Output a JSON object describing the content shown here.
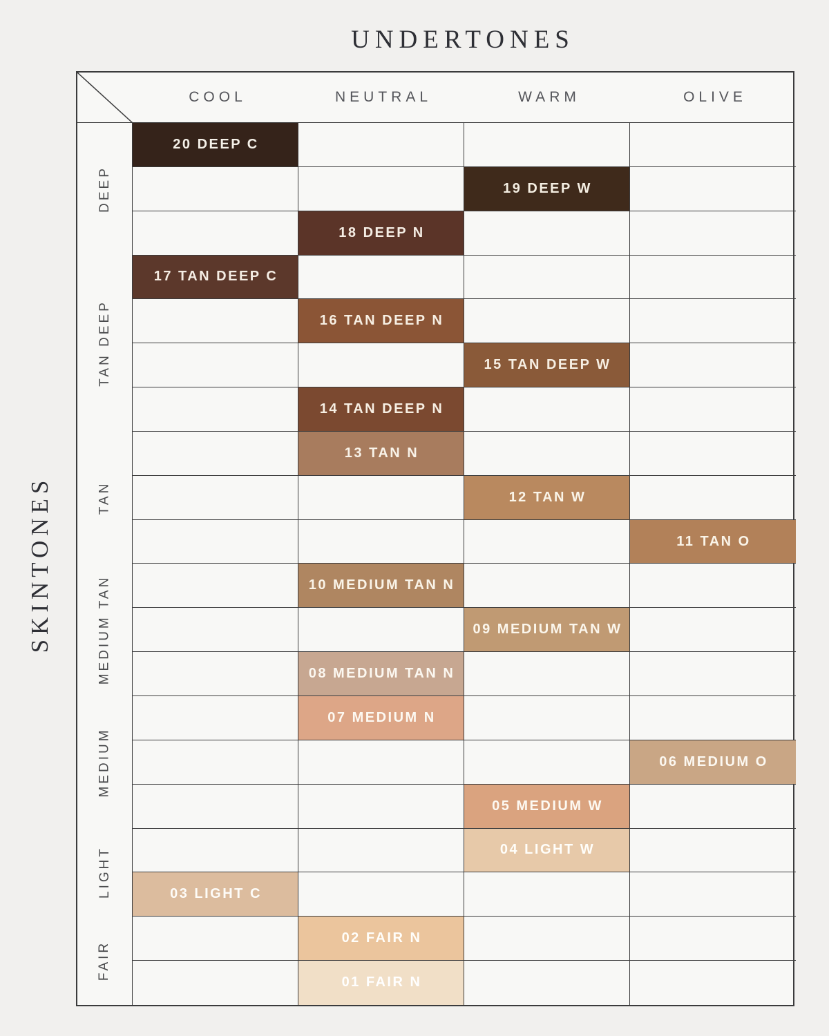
{
  "chart_data": {
    "type": "table",
    "title": "UNDERTONES",
    "side_title": "SKINTONES",
    "columns": [
      "COOL",
      "NEUTRAL",
      "WARM",
      "OLIVE"
    ],
    "row_groups": [
      {
        "label": "DEEP",
        "row_count": 3
      },
      {
        "label": "TAN DEEP",
        "row_count": 4
      },
      {
        "label": "TAN",
        "row_count": 3
      },
      {
        "label": "MEDIUM TAN",
        "row_count": 3
      },
      {
        "label": "MEDIUM",
        "row_count": 3
      },
      {
        "label": "LIGHT",
        "row_count": 2
      },
      {
        "label": "FAIR",
        "row_count": 2
      }
    ],
    "rows": [
      {
        "label": "20 DEEP C",
        "skintone": "DEEP",
        "undertone": "COOL",
        "col_index": 0,
        "swatch_hex": "#35231a",
        "label_hex": "#f5f1e9"
      },
      {
        "label": "19 DEEP W",
        "skintone": "DEEP",
        "undertone": "WARM",
        "col_index": 2,
        "swatch_hex": "#3f2a1b",
        "label_hex": "#f5efe3"
      },
      {
        "label": "18 DEEP N",
        "skintone": "DEEP",
        "undertone": "NEUTRAL",
        "col_index": 1,
        "swatch_hex": "#5b3428",
        "label_hex": "#f5ede4"
      },
      {
        "label": "17 TAN DEEP C",
        "skintone": "TAN DEEP",
        "undertone": "COOL",
        "col_index": 0,
        "swatch_hex": "#5c382b",
        "label_hex": "#f5ede4"
      },
      {
        "label": "16 TAN DEEP N",
        "skintone": "TAN DEEP",
        "undertone": "NEUTRAL",
        "col_index": 1,
        "swatch_hex": "#8b5536",
        "label_hex": "#f7efe3"
      },
      {
        "label": "15 TAN DEEP W",
        "skintone": "TAN DEEP",
        "undertone": "WARM",
        "col_index": 2,
        "swatch_hex": "#8a5a39",
        "label_hex": "#f7efe3"
      },
      {
        "label": "14 TAN DEEP N",
        "skintone": "TAN DEEP",
        "undertone": "NEUTRAL",
        "col_index": 1,
        "swatch_hex": "#7b4930",
        "label_hex": "#f7efe3"
      },
      {
        "label": "13 TAN N",
        "skintone": "TAN",
        "undertone": "NEUTRAL",
        "col_index": 1,
        "swatch_hex": "#a87c5e",
        "label_hex": "#f9f3e9"
      },
      {
        "label": "12 TAN W",
        "skintone": "TAN",
        "undertone": "WARM",
        "col_index": 2,
        "swatch_hex": "#b9895f",
        "label_hex": "#faf4e8"
      },
      {
        "label": "11 TAN O",
        "skintone": "TAN",
        "undertone": "OLIVE",
        "col_index": 3,
        "swatch_hex": "#b28159",
        "label_hex": "#faf4e8"
      },
      {
        "label": "10 MEDIUM TAN N",
        "skintone": "MEDIUM TAN",
        "undertone": "NEUTRAL",
        "col_index": 1,
        "swatch_hex": "#af8661",
        "label_hex": "#faf4e8"
      },
      {
        "label": "09 MEDIUM TAN W",
        "skintone": "MEDIUM TAN",
        "undertone": "WARM",
        "col_index": 2,
        "swatch_hex": "#c09a73",
        "label_hex": "#fbf6ec"
      },
      {
        "label": "08 MEDIUM TAN N",
        "skintone": "MEDIUM TAN",
        "undertone": "NEUTRAL",
        "col_index": 1,
        "swatch_hex": "#c7a791",
        "label_hex": "#fcf8f1"
      },
      {
        "label": "07 MEDIUM N",
        "skintone": "MEDIUM",
        "undertone": "NEUTRAL",
        "col_index": 1,
        "swatch_hex": "#dda687",
        "label_hex": "#fdf9f2"
      },
      {
        "label": "06 MEDIUM O",
        "skintone": "MEDIUM",
        "undertone": "OLIVE",
        "col_index": 3,
        "swatch_hex": "#c9a685",
        "label_hex": "#fcf8f1"
      },
      {
        "label": "05 MEDIUM W",
        "skintone": "MEDIUM",
        "undertone": "WARM",
        "col_index": 2,
        "swatch_hex": "#daa37f",
        "label_hex": "#fdf9f2"
      },
      {
        "label": "04 LIGHT W",
        "skintone": "LIGHT",
        "undertone": "WARM",
        "col_index": 2,
        "swatch_hex": "#e7c9a9",
        "label_hex": "#fffefa"
      },
      {
        "label": "03 LIGHT C",
        "skintone": "LIGHT",
        "undertone": "COOL",
        "col_index": 0,
        "swatch_hex": "#dcbc9e",
        "label_hex": "#fefcf8"
      },
      {
        "label": "02 FAIR N",
        "skintone": "FAIR",
        "undertone": "NEUTRAL",
        "col_index": 1,
        "swatch_hex": "#ebc59d",
        "label_hex": "#fffefa"
      },
      {
        "label": "01 FAIR N",
        "skintone": "FAIR",
        "undertone": "NEUTRAL",
        "col_index": 1,
        "swatch_hex": "#f1dfc7",
        "label_hex": "#ffffff"
      }
    ]
  },
  "style": {
    "background": "#f1f0ee",
    "cell_background": "#f8f8f6",
    "grid_line": "#3b3b3c",
    "header_text": "#54555a",
    "group_label_text": "#4a4b4d",
    "title_text": "#2e2f35"
  }
}
